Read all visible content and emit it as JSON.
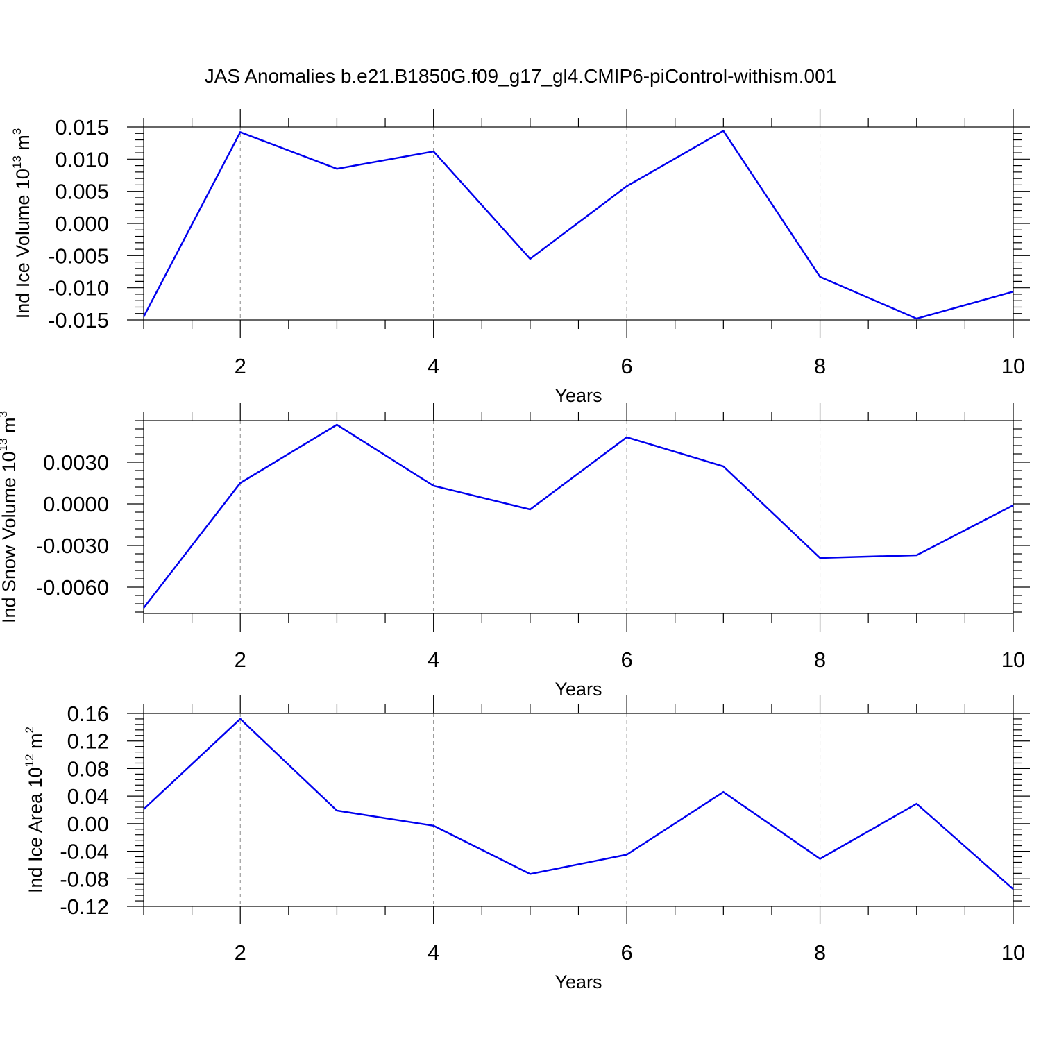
{
  "figure": {
    "title": "JAS Anomalies b.e21.B1850G.f09_g17_gl4.CMIP6-piControl-withism.001"
  },
  "chart_data": [
    {
      "type": "line",
      "xlabel": "Years",
      "ylabel": "Ind Ice Volume 10",
      "ylabel_exp": "13",
      "ylabel_unit": " m",
      "ylabel_unit_exp": "3",
      "xlim": [
        1,
        10
      ],
      "ylim": [
        -0.015,
        0.015
      ],
      "xticks": [
        2,
        4,
        6,
        8,
        10
      ],
      "xtick_labels": [
        "2",
        "4",
        "6",
        "8",
        "10"
      ],
      "yticks": [
        -0.015,
        -0.01,
        -0.005,
        0.0,
        0.005,
        0.01,
        0.015
      ],
      "ytick_labels": [
        "-0.015",
        "-0.010",
        "-0.005",
        "0.000",
        "0.005",
        "0.010",
        "0.015"
      ],
      "grid_x": true,
      "series_color": "#0000ee",
      "x": [
        1,
        2,
        3,
        4,
        5,
        6,
        7,
        8,
        9,
        10
      ],
      "y": [
        -0.0145,
        0.0142,
        0.0085,
        0.0112,
        -0.0055,
        0.0058,
        0.0144,
        -0.0083,
        -0.0148,
        -0.0106
      ]
    },
    {
      "type": "line",
      "xlabel": "Years",
      "ylabel": "Ind Snow Volume 10",
      "ylabel_exp": "13",
      "ylabel_unit": " m",
      "ylabel_unit_exp": "3",
      "xlim": [
        1,
        10
      ],
      "ylim": [
        -0.0079,
        0.006
      ],
      "xticks": [
        2,
        4,
        6,
        8,
        10
      ],
      "xtick_labels": [
        "2",
        "4",
        "6",
        "8",
        "10"
      ],
      "yticks": [
        -0.006,
        -0.003,
        0.0,
        0.003
      ],
      "ytick_labels": [
        "-0.0060",
        "-0.0030",
        "0.0000",
        "0.0030"
      ],
      "grid_x": true,
      "series_color": "#0000ee",
      "x": [
        1,
        2,
        3,
        4,
        5,
        6,
        7,
        8,
        9,
        10
      ],
      "y": [
        -0.0075,
        0.0015,
        0.0057,
        0.0013,
        -0.0004,
        0.0048,
        0.0027,
        -0.0039,
        -0.0037,
        -0.0001
      ]
    },
    {
      "type": "line",
      "xlabel": "Years",
      "ylabel": "Ind Ice Area 10",
      "ylabel_exp": "12",
      "ylabel_unit": " m",
      "ylabel_unit_exp": "2",
      "xlim": [
        1,
        10
      ],
      "ylim": [
        -0.12,
        0.16
      ],
      "xticks": [
        2,
        4,
        6,
        8,
        10
      ],
      "xtick_labels": [
        "2",
        "4",
        "6",
        "8",
        "10"
      ],
      "yticks": [
        -0.12,
        -0.08,
        -0.04,
        0.0,
        0.04,
        0.08,
        0.12,
        0.16
      ],
      "ytick_labels": [
        "-0.12",
        "-0.08",
        "-0.04",
        "0.00",
        "0.04",
        "0.08",
        "0.12",
        "0.16"
      ],
      "grid_x": true,
      "series_color": "#0000ee",
      "x": [
        1,
        2,
        3,
        4,
        5,
        6,
        7,
        8,
        9,
        10
      ],
      "y": [
        0.021,
        0.152,
        0.019,
        -0.003,
        -0.073,
        -0.045,
        0.046,
        -0.051,
        0.029,
        -0.095
      ]
    }
  ]
}
